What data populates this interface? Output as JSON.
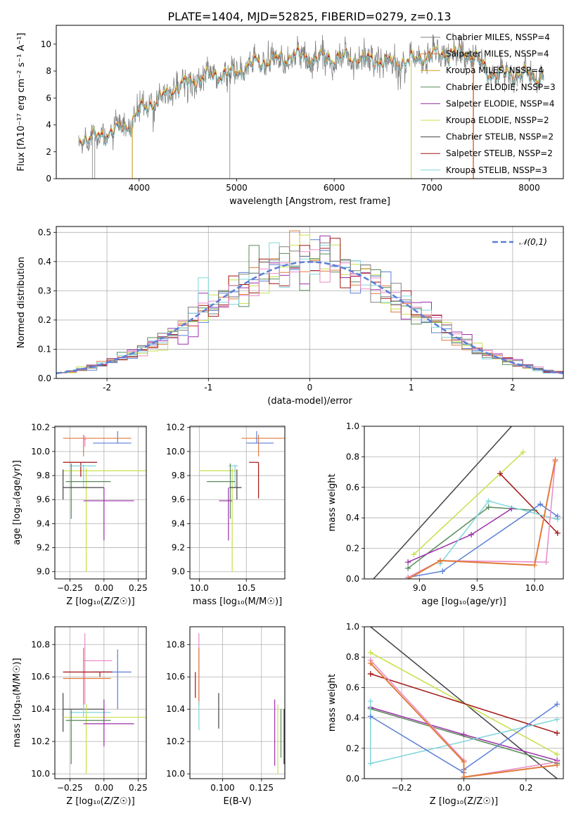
{
  "title": "PLATE=1404, MJD=52825, FIBERID=0279, z=0.13",
  "colors": {
    "Chabrier MILES": "#808080",
    "Salpeter MILES": "#e07b39",
    "Kroupa MILES": "#d4a017",
    "Chabrier ELODIE": "#5a8a5a",
    "Salpeter ELODIE": "#9b30a8",
    "Kroupa ELODIE": "#c7e04a",
    "Chabrier STELIB": "#444444",
    "Salpeter STELIB": "#a31515",
    "Kroupa STELIB": "#7fd6dc",
    "blue": "#5b7fd6",
    "pink": "#e88ac8"
  },
  "chart_data": [
    {
      "id": "spectrum",
      "type": "line",
      "xlabel": "wavelength [Angstrom, rest frame]",
      "ylabel": "Flux [fλ10⁻¹⁷ erg cm⁻² s⁻¹ A⁻¹]",
      "xlim": [
        3150,
        8350
      ],
      "ylim": [
        0,
        11.4
      ],
      "xticks": [
        4000,
        5000,
        6000,
        7000,
        8000
      ],
      "yticks": [
        0,
        2,
        4,
        6,
        8,
        10
      ],
      "legend": {
        "placement": "top-right",
        "entries": [
          {
            "name": "Chabrier MILES, NSSP=4",
            "key": "Chabrier MILES"
          },
          {
            "name": "Salpeter MILES, NSSP=4",
            "key": "Salpeter MILES"
          },
          {
            "name": "Kroupa MILES, NSSP=4",
            "key": "Kroupa MILES"
          },
          {
            "name": "Chabrier ELODIE, NSSP=3",
            "key": "Chabrier ELODIE"
          },
          {
            "name": "Salpeter ELODIE, NSSP=4",
            "key": "Salpeter ELODIE"
          },
          {
            "name": "Kroupa ELODIE, NSSP=2",
            "key": "Kroupa ELODIE"
          },
          {
            "name": "Chabrier STELIB, NSSP=2",
            "key": "Chabrier STELIB"
          },
          {
            "name": "Salpeter STELIB, NSSP=2",
            "key": "Salpeter STELIB"
          },
          {
            "name": "Kroupa STELIB, NSSP=3",
            "key": "Kroupa STELIB"
          }
        ]
      },
      "continuum": {
        "x": [
          3380,
          3500,
          3700,
          3900,
          4000,
          4200,
          4400,
          4600,
          4800,
          5000,
          5200,
          5400,
          5600,
          5800,
          6000,
          6200,
          6400,
          6600,
          6800,
          7000,
          7200,
          7400,
          7600,
          7800,
          8000,
          8150
        ],
        "y": [
          3.0,
          3.0,
          3.4,
          4.0,
          5.0,
          5.9,
          6.8,
          7.4,
          7.7,
          7.9,
          8.6,
          8.8,
          9.1,
          8.9,
          9.0,
          8.9,
          8.8,
          8.6,
          8.8,
          9.2,
          9.3,
          9.3,
          7.8,
          7.8,
          7.6,
          7.5
        ]
      }
    },
    {
      "id": "residuals",
      "type": "histogram",
      "xlabel": "(data-model)/error",
      "ylabel": "Normed distribution",
      "xlim": [
        -2.5,
        2.5
      ],
      "ylim": [
        0,
        0.52
      ],
      "xticks": [
        -2,
        -1,
        0,
        1,
        2
      ],
      "yticks": [
        0.0,
        0.1,
        0.2,
        0.3,
        0.4,
        0.5
      ],
      "bin_width": 0.1,
      "reference": {
        "name": "𝒩(0,1)",
        "style": "dashed",
        "color": "#5b7fd6"
      },
      "series_keys": [
        "blue",
        "Salpeter MILES",
        "Kroupa ELODIE",
        "Salpeter ELODIE",
        "Chabrier ELODIE",
        "Salpeter STELIB",
        "Kroupa STELIB",
        "pink",
        "Chabrier MILES"
      ]
    },
    {
      "id": "age-vs-Z",
      "type": "errorbar",
      "xlabel": "Z [log₁₀(Z/Z☉)]",
      "ylabel": "age  [log₁₀(age/yr)]",
      "xlim": [
        -0.36,
        0.31
      ],
      "ylim": [
        8.94,
        10.21
      ],
      "xticks": [
        -0.25,
        0.0,
        0.25
      ],
      "xticklabels": [
        "−0.25",
        "0.00",
        "0.25"
      ],
      "yticks": [
        9.0,
        9.2,
        9.4,
        9.6,
        9.8,
        10.0,
        10.2
      ],
      "points": [
        {
          "key": "blue",
          "x": 0.1,
          "xerr": [
            0.18,
            0.1
          ],
          "y": 10.07,
          "yerr": [
            0.0,
            0.1
          ]
        },
        {
          "key": "Salpeter MILES",
          "x": -0.15,
          "xerr": [
            0.15,
            0.35
          ],
          "y": 10.11,
          "yerr": [
            0.15,
            0.03
          ]
        },
        {
          "key": "pink",
          "x": -0.14,
          "xerr": [
            0.01,
            0.01
          ],
          "y": 10.1,
          "yerr": [
            0.06,
            0.03
          ]
        },
        {
          "key": "Kroupa ELODIE",
          "x": -0.13,
          "xerr": [
            0.17,
            0.44
          ],
          "y": 9.84,
          "yerr": [
            0.84,
            0.02
          ]
        },
        {
          "key": "Salpeter STELIB",
          "x": -0.17,
          "xerr": [
            0.13,
            0.12
          ],
          "y": 9.91,
          "yerr": [
            0.12,
            0.0
          ]
        },
        {
          "key": "Kroupa STELIB",
          "x": -0.15,
          "xerr": [
            0.1,
            0.09
          ],
          "y": 9.88,
          "yerr": [
            0.18,
            0.01
          ]
        },
        {
          "key": "Chabrier ELODIE",
          "x": -0.24,
          "xerr": [
            0.04,
            0.29
          ],
          "y": 9.75,
          "yerr": [
            0.31,
            0.15
          ]
        },
        {
          "key": "Chabrier STELIB",
          "x": -0.3,
          "xerr": [
            0.0,
            0.3
          ],
          "y": 9.7,
          "yerr": [
            0.1,
            0.15
          ]
        },
        {
          "key": "Salpeter ELODIE",
          "x": 0.0,
          "xerr": [
            0.15,
            0.22
          ],
          "y": 9.59,
          "yerr": [
            0.33,
            0.11
          ]
        }
      ]
    },
    {
      "id": "age-vs-mass",
      "type": "errorbar",
      "xlabel": "mass [log₁₀(M/M☉)]",
      "ylabel": "",
      "xlim": [
        9.9,
        10.91
      ],
      "ylim": [
        8.94,
        10.21
      ],
      "xticks": [
        10.0,
        10.5
      ],
      "xticklabels": [
        "10.0",
        "10.5"
      ],
      "yticks": [
        9.0,
        9.2,
        9.4,
        9.6,
        9.8,
        10.0,
        10.2
      ],
      "points": [
        {
          "key": "Salpeter MILES",
          "x": 10.63,
          "xerr": [
            0.18,
            0.28
          ],
          "y": 10.11,
          "yerr": [
            0.15,
            0.03
          ]
        },
        {
          "key": "blue",
          "x": 10.61,
          "xerr": [
            0.11,
            0.18
          ],
          "y": 10.07,
          "yerr": [
            0.0,
            0.1
          ]
        },
        {
          "key": "Salpeter STELIB",
          "x": 10.63,
          "xerr": [
            0.1,
            0.0
          ],
          "y": 9.91,
          "yerr": [
            0.3,
            0.0
          ]
        },
        {
          "key": "Kroupa STELIB",
          "x": 10.38,
          "xerr": [
            0.07,
            0.03
          ],
          "y": 9.88,
          "yerr": [
            0.18,
            0.01
          ]
        },
        {
          "key": "Kroupa ELODIE",
          "x": 10.35,
          "xerr": [
            0.35,
            0.05
          ],
          "y": 9.84,
          "yerr": [
            0.84,
            0.02
          ]
        },
        {
          "key": "Chabrier ELODIE",
          "x": 10.33,
          "xerr": [
            0.25,
            0.05
          ],
          "y": 9.75,
          "yerr": [
            0.31,
            0.15
          ]
        },
        {
          "key": "Chabrier STELIB",
          "x": 10.4,
          "xerr": [
            0.08,
            0.05
          ],
          "y": 9.7,
          "yerr": [
            0.1,
            0.15
          ]
        },
        {
          "key": "Salpeter ELODIE",
          "x": 10.31,
          "xerr": [
            0.1,
            0.04
          ],
          "y": 9.59,
          "yerr": [
            0.33,
            0.11
          ]
        }
      ]
    },
    {
      "id": "weight-vs-age",
      "type": "line",
      "xlabel": "age  [log₁₀(age/yr)]",
      "ylabel": "mass weight",
      "xlim": [
        8.52,
        10.25
      ],
      "ylim": [
        0,
        1
      ],
      "xticks": [
        9.0,
        9.5,
        10.0
      ],
      "xticklabels": [
        "9.0",
        "9.5",
        "10.0"
      ],
      "yticks": [
        0.0,
        0.2,
        0.4,
        0.6,
        0.8,
        1.0
      ],
      "series": [
        {
          "key": "Chabrier STELIB",
          "x": [
            8.6,
            9.8
          ],
          "y": [
            0.0,
            1.0
          ],
          "markers": false
        },
        {
          "key": "Kroupa ELODIE",
          "x": [
            8.95,
            9.9
          ],
          "y": [
            0.16,
            0.83
          ]
        },
        {
          "key": "Salpeter STELIB",
          "x": [
            9.7,
            10.2
          ],
          "y": [
            0.69,
            0.3
          ]
        },
        {
          "key": "Chabrier ELODIE",
          "x": [
            8.9,
            9.6,
            10.0
          ],
          "y": [
            0.07,
            0.47,
            0.45
          ]
        },
        {
          "key": "Salpeter ELODIE",
          "x": [
            8.9,
            9.45,
            9.8
          ],
          "y": [
            0.11,
            0.29,
            0.46
          ]
        },
        {
          "key": "Kroupa STELIB",
          "x": [
            9.18,
            9.6,
            10.2
          ],
          "y": [
            0.1,
            0.51,
            0.39
          ]
        },
        {
          "key": "blue",
          "x": [
            8.9,
            9.2,
            10.05,
            10.2
          ],
          "y": [
            0.01,
            0.05,
            0.49,
            0.41
          ]
        },
        {
          "key": "pink",
          "x": [
            8.9,
            9.18,
            10.1,
            10.18
          ],
          "y": [
            0.01,
            0.12,
            0.11,
            0.77
          ]
        },
        {
          "key": "Salpeter MILES",
          "x": [
            8.9,
            9.18,
            10.0,
            10.18
          ],
          "y": [
            0.0,
            0.12,
            0.09,
            0.78
          ]
        }
      ]
    },
    {
      "id": "mass-vs-Z",
      "type": "errorbar",
      "xlabel": "Z [log₁₀(Z/Z☉)]",
      "ylabel": "mass [log₁₀(M/M☉)]",
      "xlim": [
        -0.36,
        0.31
      ],
      "ylim": [
        9.97,
        10.91
      ],
      "xticks": [
        -0.25,
        0.0,
        0.25
      ],
      "xticklabels": [
        "−0.25",
        "0.00",
        "0.25"
      ],
      "yticks": [
        10.0,
        10.2,
        10.4,
        10.6,
        10.8
      ],
      "points": [
        {
          "key": "pink",
          "x": -0.14,
          "xerr": [
            0.01,
            0.2
          ],
          "y": 10.7,
          "yerr": [
            0.27,
            0.17
          ]
        },
        {
          "key": "Salpeter MILES",
          "x": -0.15,
          "xerr": [
            0.15,
            0.2
          ],
          "y": 10.59,
          "yerr": [
            0.17,
            0.19
          ]
        },
        {
          "key": "blue",
          "x": 0.1,
          "xerr": [
            0.18,
            0.1
          ],
          "y": 10.63,
          "yerr": [
            0.23,
            0.14
          ]
        },
        {
          "key": "Salpeter STELIB",
          "x": -0.03,
          "xerr": [
            0.27,
            0.09
          ],
          "y": 10.63,
          "yerr": [
            0.03,
            0.0
          ]
        },
        {
          "key": "Chabrier STELIB",
          "x": -0.3,
          "xerr": [
            0.0,
            0.3
          ],
          "y": 10.4,
          "yerr": [
            0.14,
            0.1
          ]
        },
        {
          "key": "Kroupa STELIB",
          "x": -0.15,
          "xerr": [
            0.1,
            0.2
          ],
          "y": 10.38,
          "yerr": [
            0.03,
            0.05
          ]
        },
        {
          "key": "Kroupa ELODIE",
          "x": -0.13,
          "xerr": [
            0.17,
            0.44
          ],
          "y": 10.35,
          "yerr": [
            0.35,
            0.08
          ]
        },
        {
          "key": "Chabrier ELODIE",
          "x": -0.24,
          "xerr": [
            0.04,
            0.29
          ],
          "y": 10.33,
          "yerr": [
            0.27,
            0.07
          ]
        },
        {
          "key": "Salpeter ELODIE",
          "x": 0.0,
          "xerr": [
            0.15,
            0.22
          ],
          "y": 10.31,
          "yerr": [
            0.14,
            0.15
          ]
        }
      ]
    },
    {
      "id": "mass-vs-EBV",
      "type": "errorbar",
      "xlabel": "E(B-V)",
      "ylabel": "",
      "xlim": [
        0.079,
        0.14
      ],
      "ylim": [
        9.97,
        10.91
      ],
      "xticks": [
        0.1,
        0.125
      ],
      "xticklabels": [
        "0.100",
        "0.125"
      ],
      "yticks": [
        10.0,
        10.2,
        10.4,
        10.6,
        10.8
      ],
      "points": [
        {
          "key": "Salpeter STELIB",
          "x": 0.0825,
          "xerr": [
            0,
            0
          ],
          "y": 10.55,
          "yerr": [
            0.08,
            0.08
          ]
        },
        {
          "key": "pink",
          "x": 0.0848,
          "xerr": [
            0,
            0
          ],
          "y": 10.7,
          "yerr": [
            0.27,
            0.17
          ]
        },
        {
          "key": "Salpeter MILES",
          "x": 0.0848,
          "xerr": [
            0,
            0
          ],
          "y": 10.59,
          "yerr": [
            0.17,
            0.19
          ]
        },
        {
          "key": "Kroupa STELIB",
          "x": 0.0848,
          "xerr": [
            0,
            0
          ],
          "y": 10.36,
          "yerr": [
            0.09,
            0.09
          ]
        },
        {
          "key": "Chabrier STELIB",
          "x": 0.0975,
          "xerr": [
            0,
            0
          ],
          "y": 10.39,
          "yerr": [
            0.11,
            0.11
          ]
        },
        {
          "key": "Salpeter ELODIE",
          "x": 0.1335,
          "xerr": [
            0,
            0
          ],
          "y": 10.19,
          "yerr": [
            0.14,
            0.27
          ]
        },
        {
          "key": "Kroupa ELODIE",
          "x": 0.1355,
          "xerr": [
            0,
            0
          ],
          "y": 10.2,
          "yerr": [
            0.2,
            0.23
          ]
        },
        {
          "key": "Chabrier ELODIE",
          "x": 0.1375,
          "xerr": [
            0,
            0
          ],
          "y": 10.2,
          "yerr": [
            0.1,
            0.2
          ]
        },
        {
          "key": "Chabrier STELIB",
          "x": 0.1395,
          "xerr": [
            0,
            0
          ],
          "y": 10.23,
          "yerr": [
            0.17,
            0.17
          ]
        }
      ]
    },
    {
      "id": "weight-vs-Z",
      "type": "line",
      "xlabel": "Z [log₁₀(Z/Z☉)]",
      "ylabel": "mass weight",
      "xlim": [
        -0.32,
        0.32
      ],
      "ylim": [
        0,
        1
      ],
      "xticks": [
        -0.2,
        0.0,
        0.2
      ],
      "xticklabels": [
        "−0.2",
        "0.0",
        "0.2"
      ],
      "yticks": [
        0.0,
        0.2,
        0.4,
        0.6,
        0.8,
        1.0
      ],
      "series": [
        {
          "key": "Chabrier STELIB",
          "x": [
            -0.3,
            0.3
          ],
          "y": [
            1.0,
            0.0
          ],
          "markers": false
        },
        {
          "key": "Kroupa ELODIE",
          "x": [
            -0.3,
            0.3
          ],
          "y": [
            0.83,
            0.16
          ]
        },
        {
          "key": "Salpeter STELIB",
          "x": [
            -0.3,
            0.3
          ],
          "y": [
            0.69,
            0.3
          ]
        },
        {
          "key": "Chabrier ELODIE",
          "x": [
            -0.3,
            0.3
          ],
          "y": [
            0.46,
            0.1
          ]
        },
        {
          "key": "Salpeter ELODIE",
          "x": [
            -0.3,
            0.0,
            0.3
          ],
          "y": [
            0.47,
            0.29,
            0.12
          ]
        },
        {
          "key": "Kroupa STELIB",
          "x": [
            -0.3,
            -0.3,
            0.3
          ],
          "y": [
            0.51,
            0.1,
            0.39
          ]
        },
        {
          "key": "blue",
          "x": [
            -0.3,
            0.0,
            0.0,
            0.3
          ],
          "y": [
            0.41,
            0.04,
            0.06,
            0.49
          ]
        },
        {
          "key": "pink",
          "x": [
            -0.3,
            0.0,
            0.0,
            0.3
          ],
          "y": [
            0.78,
            0.12,
            0.01,
            0.11
          ]
        },
        {
          "key": "Salpeter MILES",
          "x": [
            -0.3,
            0.0,
            0.0,
            0.3
          ],
          "y": [
            0.76,
            0.11,
            0.01,
            0.09
          ]
        }
      ]
    }
  ]
}
